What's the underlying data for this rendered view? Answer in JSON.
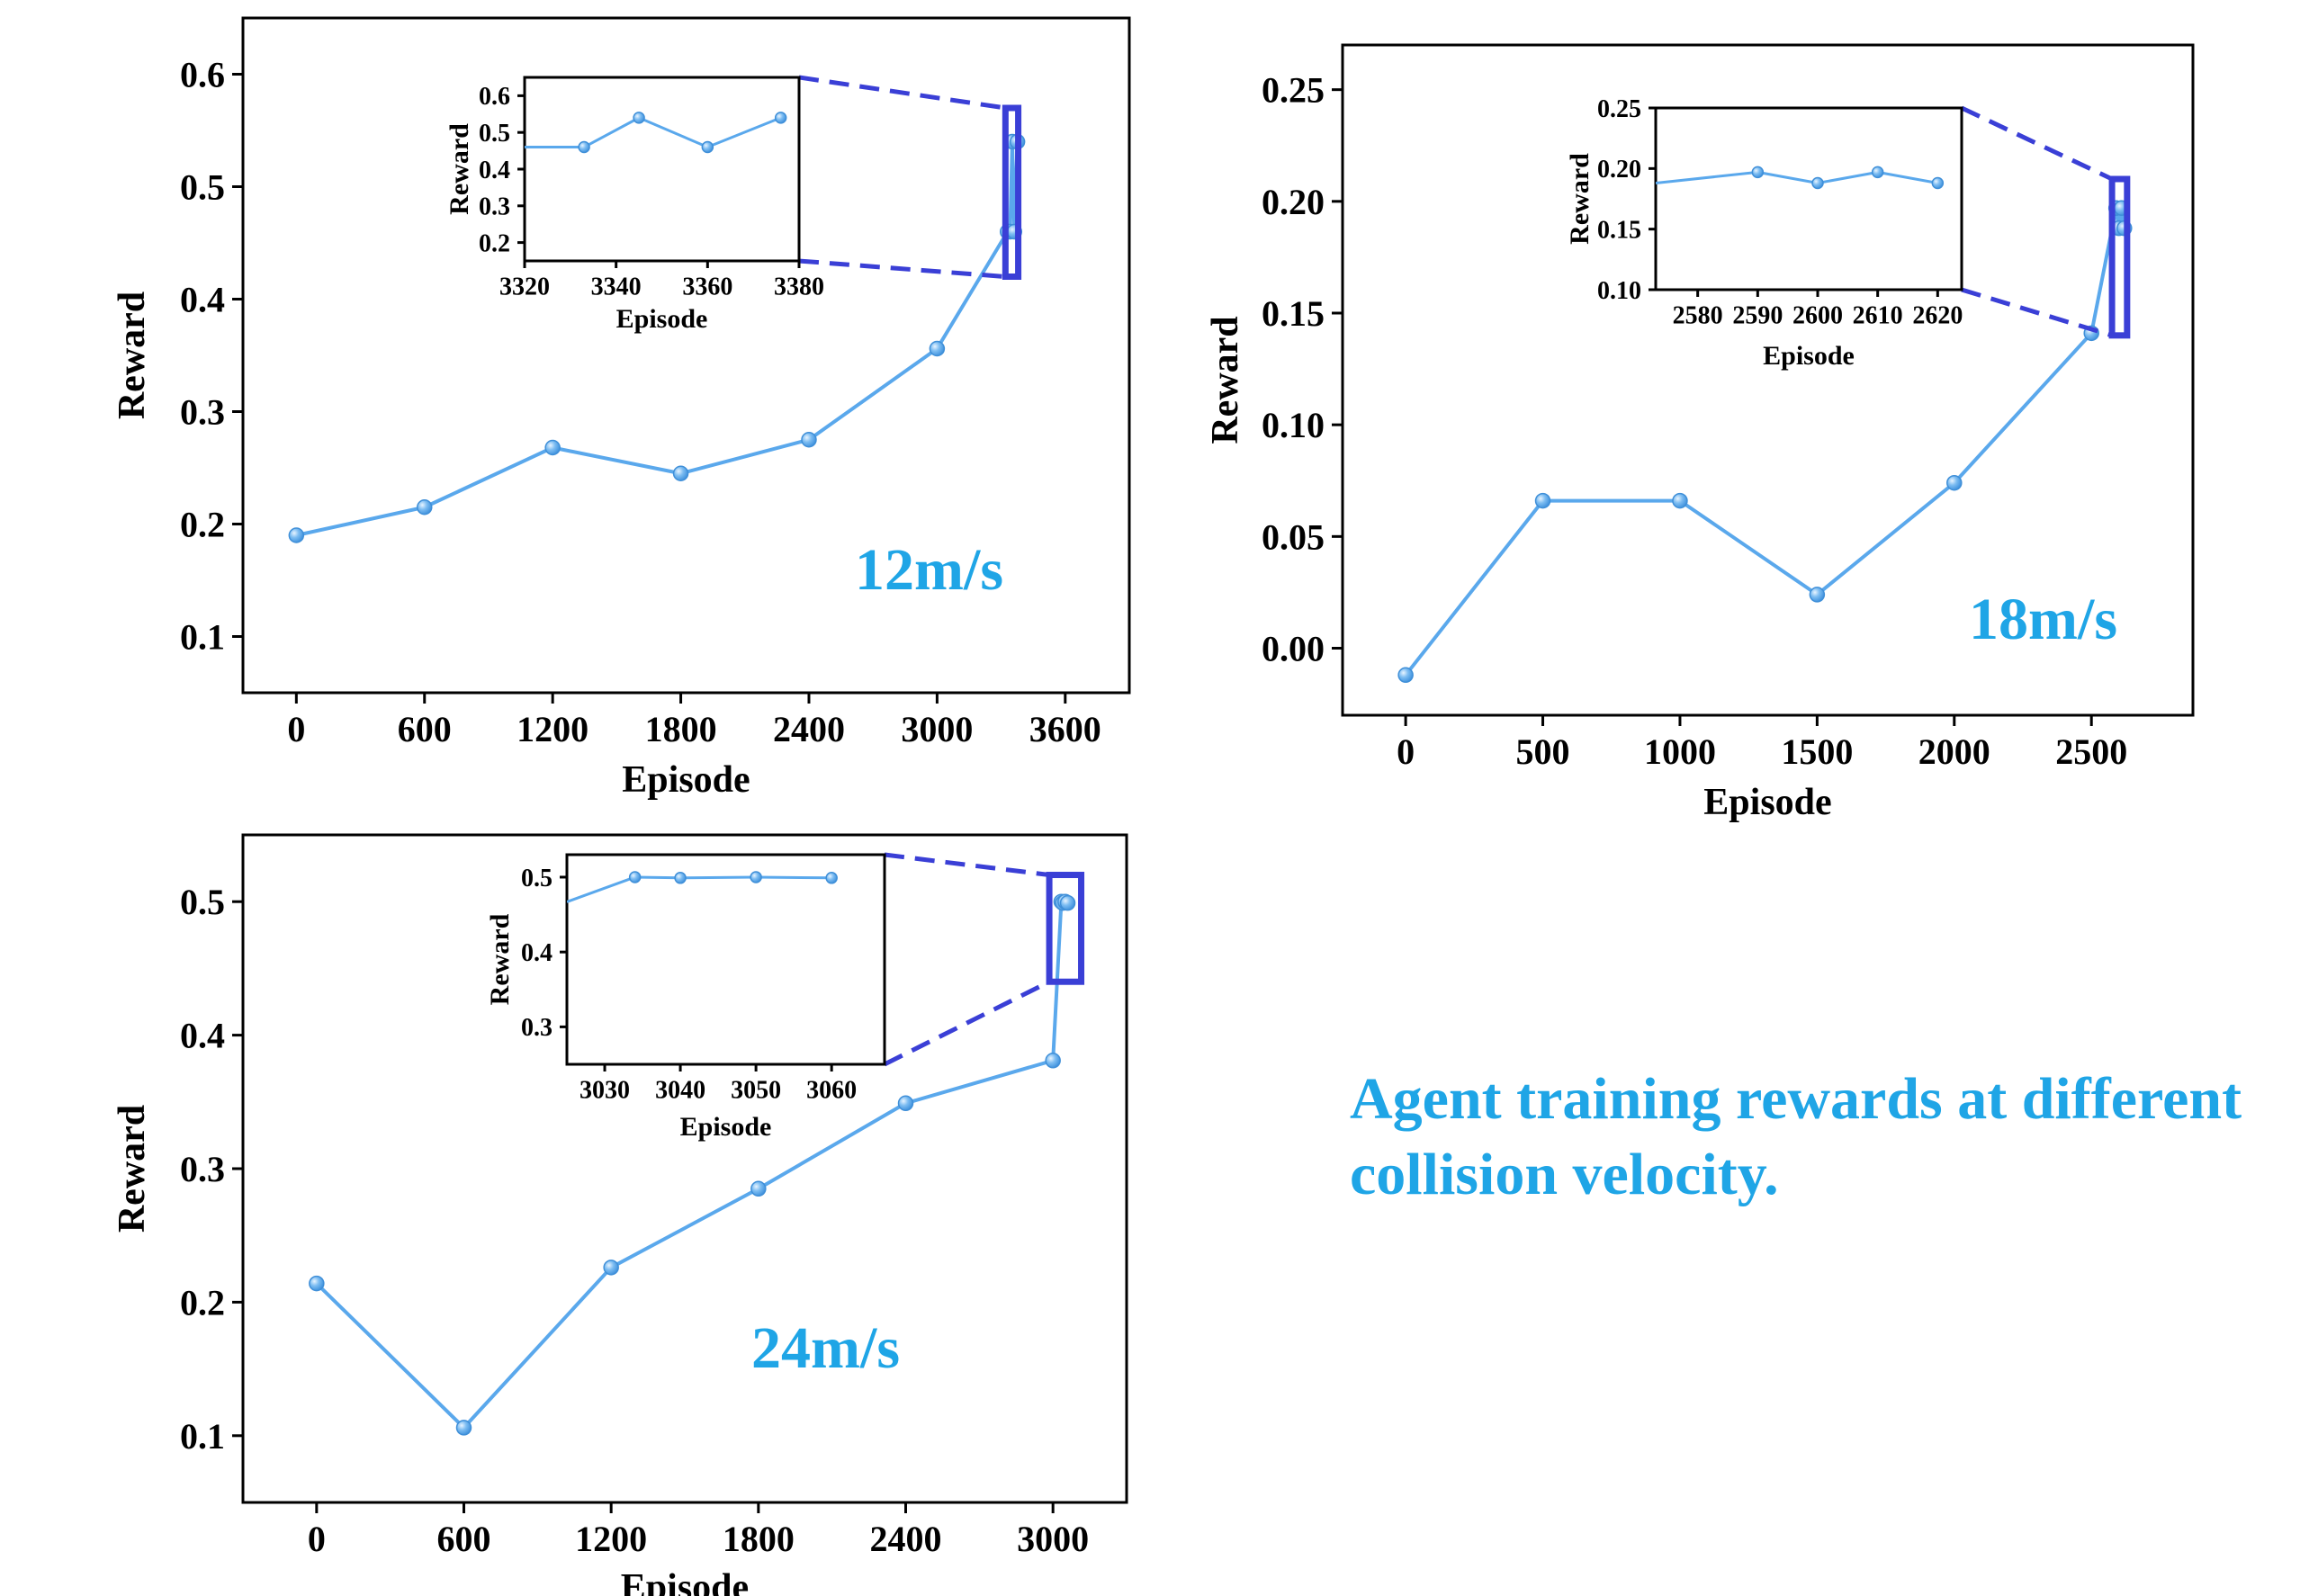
{
  "caption": "Agent training rewards at different collision velocity.",
  "colors": {
    "line": "#5aa8ec",
    "marker": "#63b0ee",
    "zoom": "#3a3fd6",
    "label": "#1fa5e6"
  },
  "chart_data": [
    {
      "id": "p12",
      "type": "line",
      "annotation": "12m/s",
      "xlabel": "Episode",
      "ylabel": "Reward",
      "xlim": [
        -250,
        3900
      ],
      "ylim": [
        0.05,
        0.65
      ],
      "xticks": [
        0,
        600,
        1200,
        1800,
        2400,
        3000,
        3600
      ],
      "yticks": [
        0.1,
        0.2,
        0.3,
        0.4,
        0.5,
        0.6
      ],
      "tick_decimals": 1,
      "x": [
        0,
        600,
        1200,
        1800,
        2400,
        3000,
        3330,
        3342,
        3352,
        3362,
        3376
      ],
      "y": [
        0.19,
        0.215,
        0.268,
        0.245,
        0.275,
        0.356,
        0.46,
        0.46,
        0.54,
        0.46,
        0.54
      ],
      "zoom_range": {
        "x": [
          3320,
          3380
        ],
        "y": [
          0.42,
          0.57
        ]
      },
      "inset": {
        "xlabel": "Episode",
        "ylabel": "Reward",
        "xlim": [
          3320,
          3380
        ],
        "ylim": [
          0.15,
          0.65
        ],
        "xticks": [
          3320,
          3340,
          3360,
          3380
        ],
        "yticks": [
          0.2,
          0.3,
          0.4,
          0.5,
          0.6
        ],
        "tick_decimals": 1,
        "x": [
          3320,
          3333,
          3345,
          3360,
          3376
        ],
        "y": [
          0.46,
          0.46,
          0.54,
          0.46,
          0.54
        ],
        "markers_from": 1
      }
    },
    {
      "id": "p18",
      "type": "line",
      "annotation": "18m/s",
      "xlabel": "Episode",
      "ylabel": "Reward",
      "xlim": [
        -230,
        2870
      ],
      "ylim": [
        -0.03,
        0.27
      ],
      "xticks": [
        0,
        500,
        1000,
        1500,
        2000,
        2500
      ],
      "yticks": [
        0.0,
        0.05,
        0.1,
        0.15,
        0.2,
        0.25
      ],
      "tick_decimals": 2,
      "x": [
        0,
        500,
        1000,
        1500,
        2000,
        2500,
        2590,
        2600,
        2610,
        2620
      ],
      "y": [
        -0.012,
        0.066,
        0.066,
        0.024,
        0.074,
        0.141,
        0.197,
        0.188,
        0.197,
        0.188
      ],
      "zoom_range": {
        "x": [
          2575,
          2630
        ],
        "y": [
          0.14,
          0.21
        ]
      },
      "inset": {
        "xlabel": "Episode",
        "ylabel": "Reward",
        "xlim": [
          2573,
          2624
        ],
        "ylim": [
          0.1,
          0.25
        ],
        "xticks": [
          2580,
          2590,
          2600,
          2610,
          2620
        ],
        "yticks": [
          0.1,
          0.15,
          0.2,
          0.25
        ],
        "tick_decimals": 2,
        "x": [
          2573,
          2590,
          2600,
          2610,
          2620
        ],
        "y": [
          0.188,
          0.197,
          0.188,
          0.197,
          0.188
        ],
        "markers_from": 1
      }
    },
    {
      "id": "p24",
      "type": "line",
      "annotation": "24m/s",
      "xlabel": "Episode",
      "ylabel": "Reward",
      "xlim": [
        -300,
        3300
      ],
      "ylim": [
        0.05,
        0.55
      ],
      "xticks": [
        0,
        600,
        1200,
        1800,
        2400,
        3000
      ],
      "yticks": [
        0.1,
        0.2,
        0.3,
        0.4,
        0.5
      ],
      "tick_decimals": 1,
      "x": [
        0,
        600,
        1200,
        1800,
        2400,
        3000,
        3034,
        3040,
        3050,
        3060
      ],
      "y": [
        0.214,
        0.106,
        0.226,
        0.285,
        0.349,
        0.381,
        0.5,
        0.499,
        0.5,
        0.499
      ],
      "zoom_range": {
        "x": [
          2985,
          3115
        ],
        "y": [
          0.44,
          0.52
        ]
      },
      "inset": {
        "xlabel": "Episode",
        "ylabel": "Reward",
        "xlim": [
          3025,
          3067
        ],
        "ylim": [
          0.25,
          0.53
        ],
        "xticks": [
          3030,
          3040,
          3050,
          3060
        ],
        "yticks": [
          0.3,
          0.4,
          0.5
        ],
        "tick_decimals": 1,
        "x": [
          3025,
          3034,
          3040,
          3050,
          3060
        ],
        "y": [
          0.467,
          0.5,
          0.499,
          0.5,
          0.499
        ],
        "markers_from": 1
      }
    }
  ]
}
